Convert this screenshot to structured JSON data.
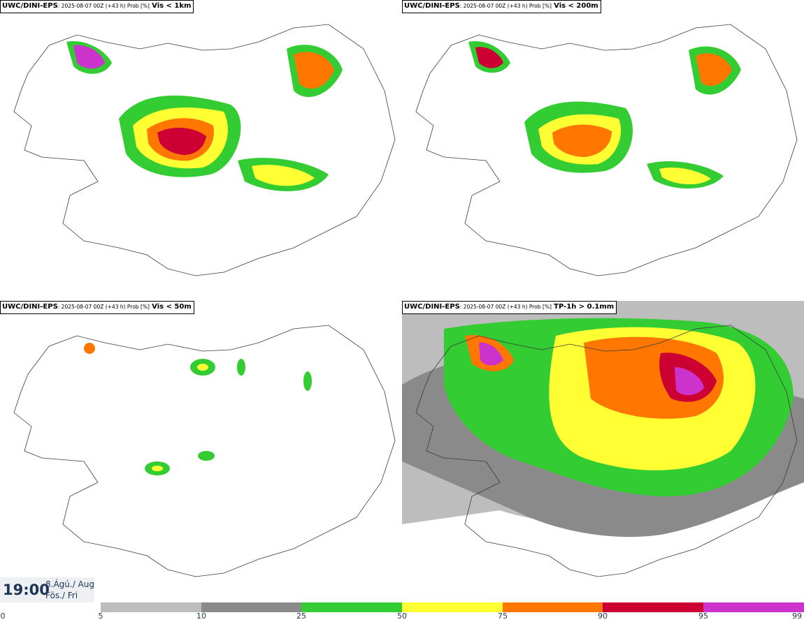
{
  "panels": [
    {
      "model": "UWC/DINI-EPS",
      "meta": ": 2025-08-07 00Z (+43 h) Prob [%]",
      "variable": "Vis < 1km"
    },
    {
      "model": "UWC/DINI-EPS",
      "meta": ": 2025-08-07 00Z (+43 h) Prob [%]",
      "variable": "Vis < 200m"
    },
    {
      "model": "UWC/DINI-EPS",
      "meta": ": 2025-08-07 00Z (+43 h) Prob [%]",
      "variable": "Vis < 50m"
    },
    {
      "model": "UWC/DINI-EPS",
      "meta": ": 2025-08-07 00Z (+43 h) Prob [%]",
      "variable": "TP-1h > 0.1mm"
    }
  ],
  "valid_time": {
    "time": "19:00",
    "date": "8.Ágú./ Aug",
    "weekday": "Fös./ Fri"
  },
  "colorbar": {
    "ticks": [
      "0",
      "5",
      "10",
      "25",
      "50",
      "75",
      "90",
      "95",
      "99"
    ],
    "colors": [
      "#ffffff",
      "#bdbdbd",
      "#8a8a8a",
      "#33cc33",
      "#ffff33",
      "#ff7700",
      "#cc0033",
      "#cc33cc",
      "#f2a6f2"
    ]
  },
  "palette": {
    "land_outline": "#3a3a3a",
    "text_dark": "#1c3553"
  }
}
